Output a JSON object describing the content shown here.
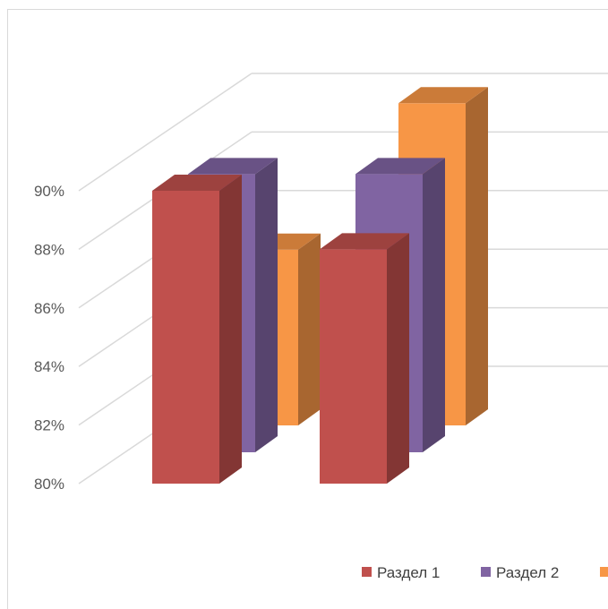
{
  "chart_data": {
    "type": "bar",
    "style": "3d-clustered-column",
    "categories": [
      "",
      ""
    ],
    "series": [
      {
        "name": "Раздел 1",
        "values": [
          90,
          88
        ],
        "color": "#c0504d"
      },
      {
        "name": "Раздел 2",
        "values": [
          89.5,
          89.5
        ],
        "color": "#8064a2"
      },
      {
        "name": "",
        "values": [
          86,
          91
        ],
        "color": "#f79646"
      }
    ],
    "ylim": [
      80,
      90
    ],
    "yticks": [
      "80%",
      "82%",
      "84%",
      "86%",
      "88%",
      "90%"
    ],
    "grid": true,
    "legend": "bottom"
  }
}
